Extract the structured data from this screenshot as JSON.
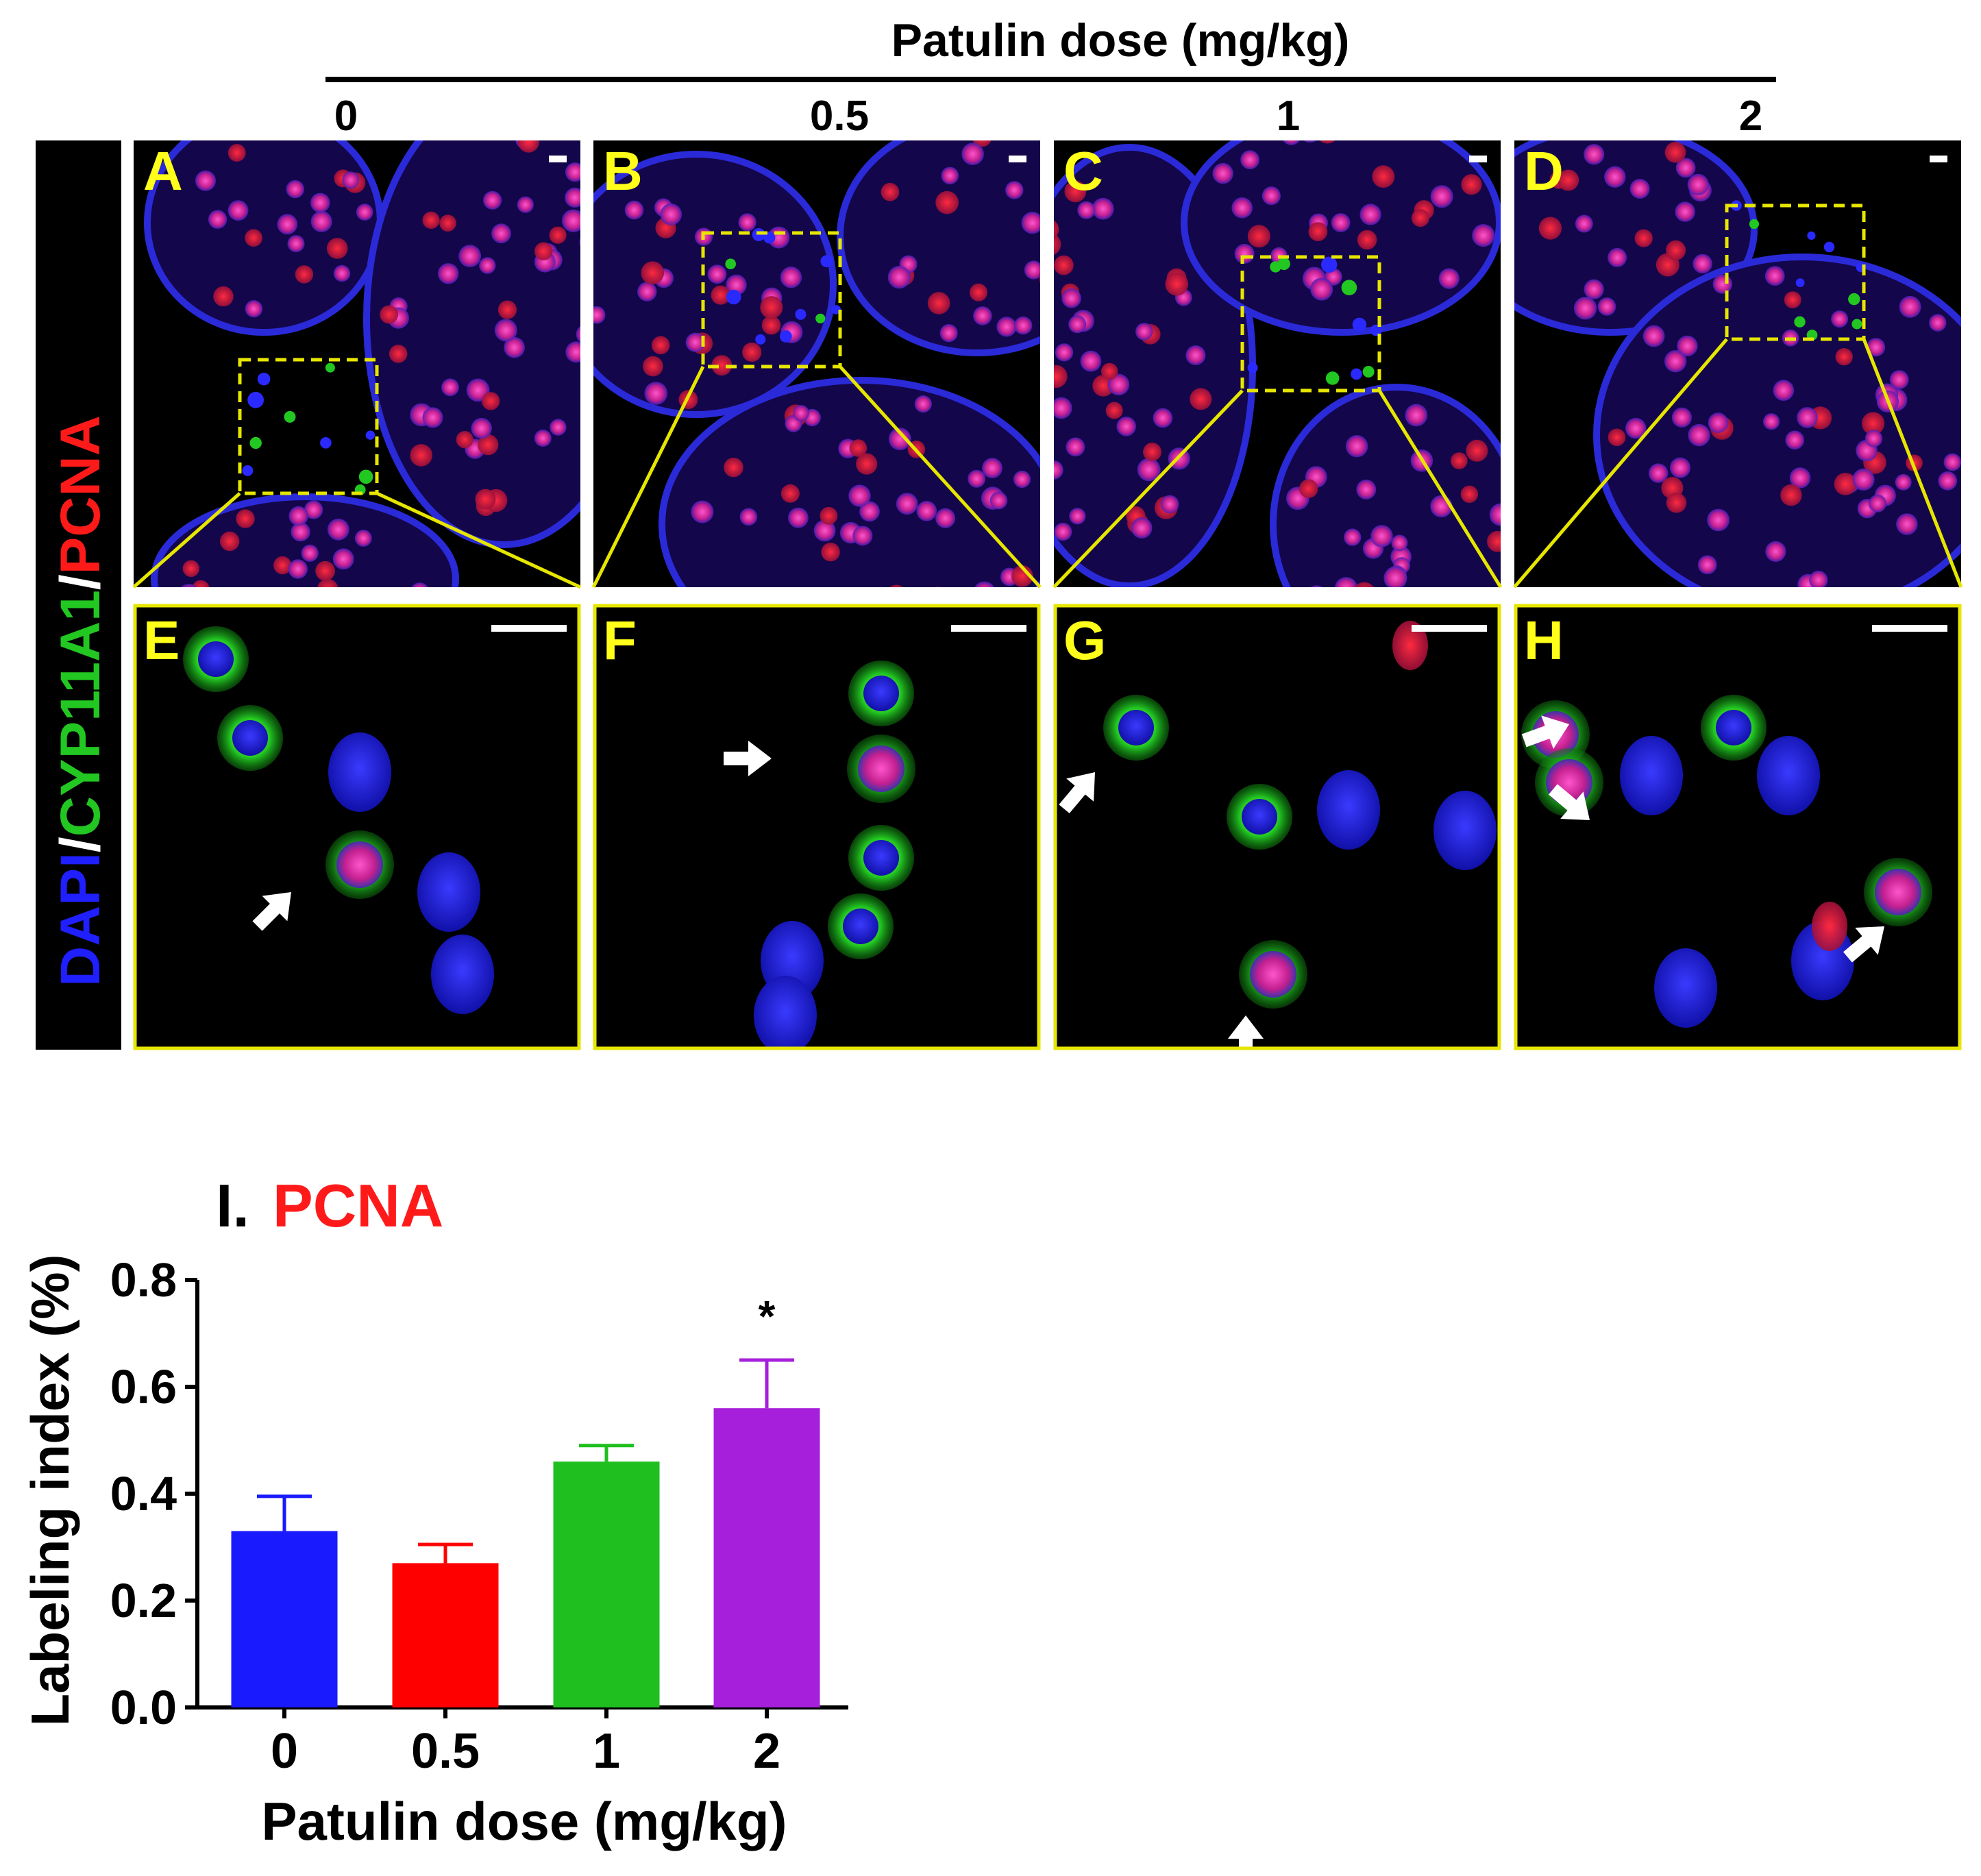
{
  "header": {
    "title": "Patulin dose  (mg/kg)",
    "doses": [
      "0",
      "0.5",
      "1",
      "2"
    ]
  },
  "side_label": {
    "dapi": "DAPI",
    "slash1": "/",
    "cyp": "CYP11A1",
    "slash2": "/",
    "pcna": "PCNA"
  },
  "panels": {
    "top": [
      "A",
      "B",
      "C",
      "D"
    ],
    "bottom": [
      "E",
      "F",
      "G",
      "H"
    ]
  },
  "colors": {
    "dapi": "#1f1fff",
    "cyp": "#22c722",
    "pcna": "#ff1a1a",
    "panel_letter": "#ffff1a",
    "zoom_box": "#e6e600",
    "arrow": "#ffffff"
  },
  "chart_title": {
    "prefix": "I.",
    "label": "PCNA"
  },
  "chart_data": {
    "type": "bar",
    "categories": [
      "0",
      "0.5",
      "1",
      "2"
    ],
    "values": [
      0.33,
      0.27,
      0.46,
      0.56
    ],
    "errors": [
      0.065,
      0.035,
      0.03,
      0.09
    ],
    "colors": [
      "#1a1aff",
      "#ff0000",
      "#1fbf1f",
      "#a61fdb"
    ],
    "significance": [
      "",
      "",
      "",
      "*"
    ],
    "xlabel": "Patulin dose (mg/kg)",
    "ylabel": "Labeling index (%)",
    "ylim": [
      0,
      0.8
    ],
    "yticks": [
      "0.0",
      "0.2",
      "0.4",
      "0.6",
      "0.8"
    ]
  }
}
